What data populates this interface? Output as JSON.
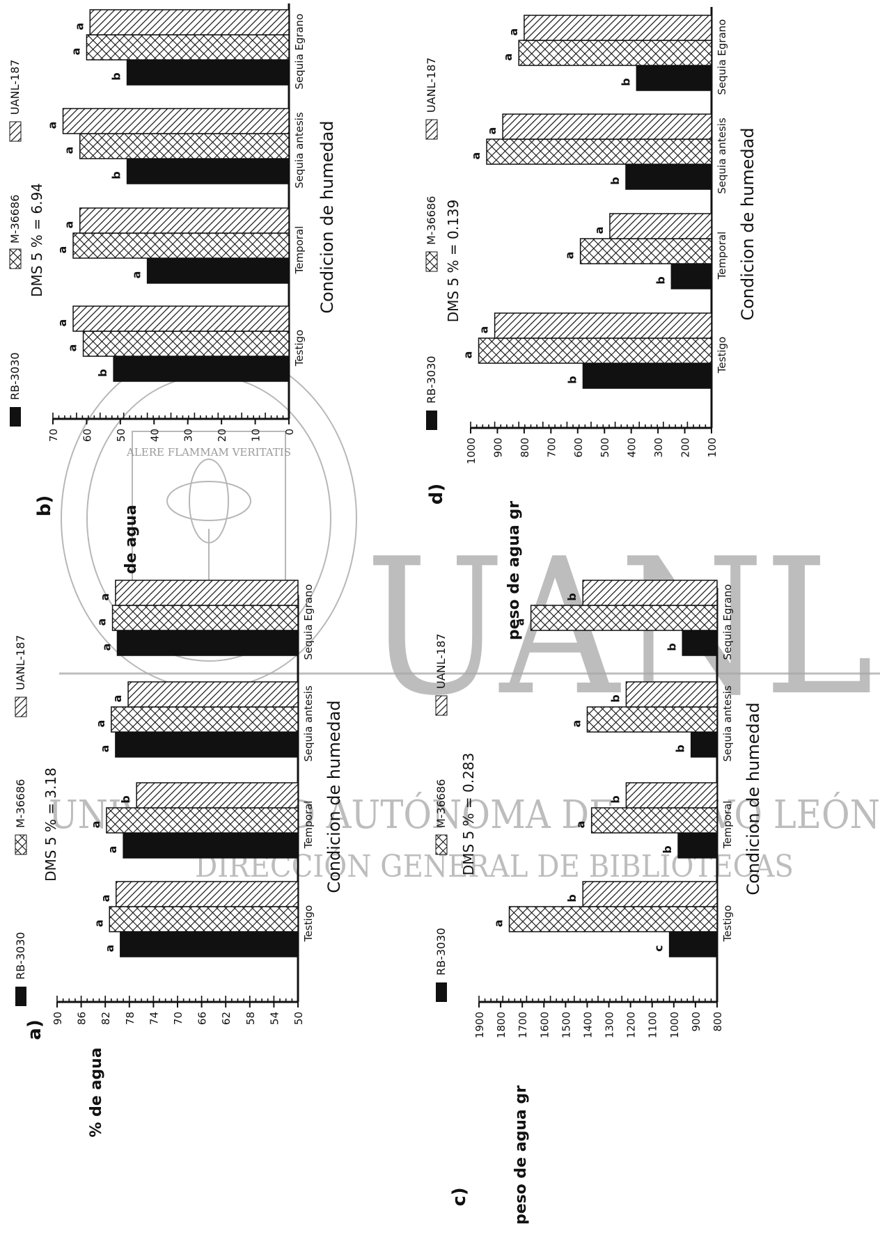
{
  "watermark": {
    "big_text": "UANL",
    "line1": "UNIVERSIDAD AUTÓNOMA DE NUEVO LEÓN",
    "line2": "DIRECCIÓN GENERAL DE BIBLIOTECAS",
    "seal_ring": "UNIVERSIDAD AUTONOMA DE NUEVO LEON",
    "seal_motto": "ALERE FLAMMAM VERITATIS"
  },
  "series_legend": [
    {
      "name": "RB-3030",
      "fill": "solid",
      "color": "#111111"
    },
    {
      "name": "M-36686",
      "fill": "crosshatch",
      "color": "#111111"
    },
    {
      "name": "UANL-187",
      "fill": "diagonal",
      "color": "#111111"
    }
  ],
  "chart_data": [
    {
      "panel": "a)",
      "type": "bar",
      "orientation": "rotated-90-ccw",
      "dms_text": "DMS 5 % = 3.18",
      "xlabel": "Condicion de humedad",
      "ylabel": "% de agua",
      "categories": [
        "Testigo",
        "Temporal",
        "Sequia antesis",
        "Sequia Egrano"
      ],
      "ylim": [
        50,
        90
      ],
      "yticks": [
        50,
        54,
        58,
        62,
        66,
        70,
        74,
        78,
        82,
        86,
        90
      ],
      "series": [
        {
          "name": "RB-3030",
          "values": [
            79.5,
            79,
            80.3,
            80.0
          ],
          "letters": [
            "a",
            "a",
            "a",
            "a"
          ]
        },
        {
          "name": "M-36686",
          "values": [
            81.3,
            81.8,
            81.0,
            80.8
          ],
          "letters": [
            "a",
            "a",
            "a",
            "a"
          ]
        },
        {
          "name": "UANL-187",
          "values": [
            80.2,
            76.8,
            78.2,
            80.3
          ],
          "letters": [
            "a",
            "b",
            "a",
            "a"
          ]
        }
      ]
    },
    {
      "panel": "b)",
      "type": "bar",
      "orientation": "rotated-90-ccw",
      "dms_text": "DMS 5 % = 6.94",
      "xlabel": "Condicion de humedad",
      "ylabel": "% de agua",
      "categories": [
        "Testigo",
        "Temporal",
        "Sequia antesis",
        "Sequia Egrano"
      ],
      "ylim": [
        0,
        70
      ],
      "yticks": [
        0,
        10,
        20,
        30,
        40,
        50,
        60,
        70
      ],
      "series": [
        {
          "name": "RB-3030",
          "values": [
            52,
            42,
            48,
            48
          ],
          "letters": [
            "b",
            "a",
            "b",
            "b"
          ]
        },
        {
          "name": "M-36686",
          "values": [
            61,
            64,
            62,
            60
          ],
          "letters": [
            "a",
            "a",
            "a",
            "a"
          ]
        },
        {
          "name": "UANL-187",
          "values": [
            64,
            62,
            67,
            59
          ],
          "letters": [
            "a",
            "a",
            "a",
            "a"
          ]
        }
      ]
    },
    {
      "panel": "c)",
      "type": "bar",
      "orientation": "rotated-90-ccw",
      "dms_text": "DMS 5 % = 0.283",
      "xlabel": "Condicion de humedad",
      "ylabel": "peso de agua gr",
      "categories": [
        "Testigo",
        "Temporal",
        "Sequia antesis",
        "Sequia Egrano"
      ],
      "ylim": [
        800,
        1900
      ],
      "yticks": [
        800,
        900,
        1000,
        1100,
        1200,
        1300,
        1400,
        1500,
        1600,
        1700,
        1800,
        1900
      ],
      "series": [
        {
          "name": "RB-3030",
          "values": [
            1020,
            980,
            920,
            960
          ],
          "letters": [
            "c",
            "b",
            "b",
            "b"
          ]
        },
        {
          "name": "M-36686",
          "values": [
            1760,
            1380,
            1400,
            1660
          ],
          "letters": [
            "a",
            "a",
            "a",
            "a"
          ]
        },
        {
          "name": "UANL-187",
          "values": [
            1420,
            1220,
            1220,
            1420
          ],
          "letters": [
            "b",
            "b",
            "b",
            "b"
          ]
        }
      ]
    },
    {
      "panel": "d)",
      "type": "bar",
      "orientation": "rotated-90-ccw",
      "dms_text": "DMS 5 % = 0.139",
      "xlabel": "Condicion de humedad",
      "ylabel": "peso de agua gr",
      "categories": [
        "Testigo",
        "Temporal",
        "Sequia antesis",
        "Sequia Egrano"
      ],
      "ylim": [
        100,
        1000
      ],
      "yticks": [
        100,
        200,
        300,
        400,
        500,
        600,
        700,
        800,
        900,
        1000
      ],
      "series": [
        {
          "name": "RB-3030",
          "values": [
            580,
            250,
            420,
            380
          ],
          "letters": [
            "b",
            "b",
            "b",
            "b"
          ]
        },
        {
          "name": "M-36686",
          "values": [
            970,
            590,
            940,
            820
          ],
          "letters": [
            "a",
            "a",
            "a",
            "a"
          ]
        },
        {
          "name": "UANL-187",
          "values": [
            910,
            480,
            880,
            800
          ],
          "letters": [
            "a",
            "a",
            "a",
            "a"
          ]
        }
      ]
    }
  ]
}
